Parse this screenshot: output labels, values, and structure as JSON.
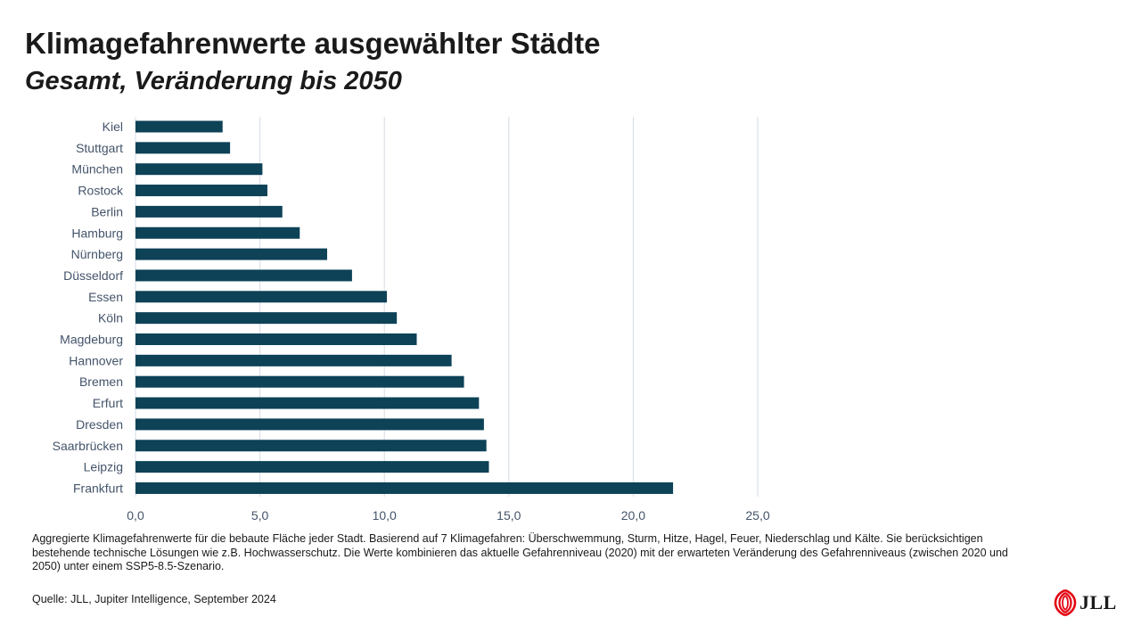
{
  "header": {
    "title": "Klimagefahrenwerte ausgewählter Städte",
    "subtitle": "Gesamt, Veränderung bis 2050"
  },
  "chart_data": {
    "type": "bar",
    "orientation": "horizontal",
    "categories": [
      "Kiel",
      "Stuttgart",
      "München",
      "Rostock",
      "Berlin",
      "Hamburg",
      "Nürnberg",
      "Düsseldorf",
      "Essen",
      "Köln",
      "Magdeburg",
      "Hannover",
      "Bremen",
      "Erfurt",
      "Dresden",
      "Saarbrücken",
      "Leipzig",
      "Frankfurt"
    ],
    "values": [
      3.5,
      3.8,
      5.1,
      5.3,
      5.9,
      6.6,
      7.7,
      8.7,
      10.1,
      10.5,
      11.3,
      12.7,
      13.2,
      13.8,
      14.0,
      14.1,
      14.2,
      21.6
    ],
    "xlim": [
      0,
      25
    ],
    "xticks": [
      0,
      5,
      10,
      15,
      20,
      25
    ],
    "xtick_labels": [
      "0,0",
      "5,0",
      "10,0",
      "15,0",
      "20,0",
      "25,0"
    ],
    "grid": "vertical",
    "bar_color": "#0d4257",
    "grid_color": "#d6dde4"
  },
  "footer": {
    "note": "Aggregierte Klimagefahrenwerte für die bebaute Fläche jeder Stadt. Basierend auf 7 Klimagefahren: Überschwemmung, Sturm, Hitze, Hagel, Feuer, Niederschlag und Kälte. Sie berücksichtigen bestehende technische Lösungen wie z.B. Hochwasserschutz.  Die Werte kombinieren das aktuelle Gefahrenniveau (2020) mit der erwarteten Veränderung des Gefahrenniveaus (zwischen 2020 und 2050) unter einem SSP5-8.5-Szenario.",
    "source": "Quelle: JLL, Jupiter Intelligence, September 2024"
  },
  "logo": {
    "text": "JLL",
    "icon": "jll-logo-icon",
    "color": "#e30613"
  }
}
